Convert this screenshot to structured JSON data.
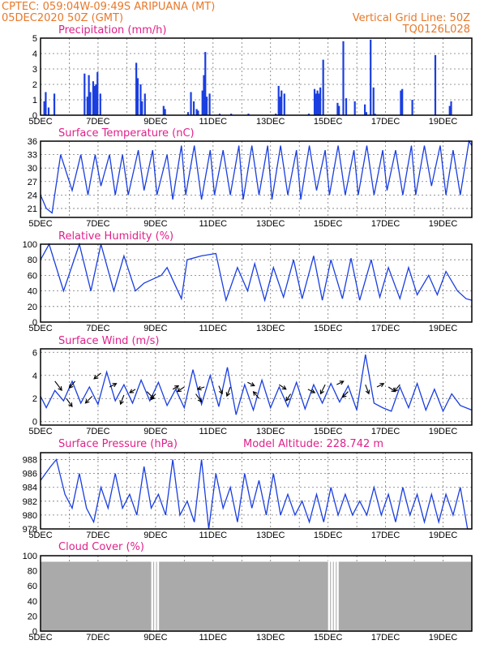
{
  "header": {
    "line1_left": "CPTEC:   059:04W-09:49S   ARIPUANA (MT)",
    "line2_left": "05DEC2020 50Z (GMT)",
    "line2_right": "Vertical Grid Line: 50Z",
    "line3_right": "TQ0126L028"
  },
  "colors": {
    "header": "#e8782a",
    "title": "#e0208a",
    "series": "#1a3ee0",
    "cloud": "#aaaaaa"
  },
  "chart_data": [
    {
      "id": "precip",
      "type": "bar",
      "title": "Precipitation (mm/h)",
      "x_ticks": [
        "5DEC",
        "7DEC",
        "9DEC",
        "11DEC",
        "13DEC",
        "15DEC",
        "17DEC",
        "19DEC"
      ],
      "ylim": [
        0,
        5
      ],
      "y_ticks": [
        0,
        1,
        2,
        3,
        4,
        5
      ],
      "bars": [
        [
          0.1,
          0.9
        ],
        [
          0.15,
          1.5
        ],
        [
          0.25,
          0.5
        ],
        [
          0.45,
          1.4
        ],
        [
          1.5,
          2.7
        ],
        [
          1.6,
          1.2
        ],
        [
          1.65,
          2.6
        ],
        [
          1.7,
          1.5
        ],
        [
          1.8,
          2.2
        ],
        [
          1.85,
          1.9
        ],
        [
          1.9,
          2.0
        ],
        [
          1.95,
          2.8
        ],
        [
          2.05,
          1.4
        ],
        [
          3.3,
          3.4
        ],
        [
          3.35,
          2.4
        ],
        [
          3.45,
          2.0
        ],
        [
          3.5,
          0.9
        ],
        [
          3.6,
          1.4
        ],
        [
          4.25,
          0.6
        ],
        [
          4.3,
          0.4
        ],
        [
          5.1,
          0.2
        ],
        [
          5.2,
          1.5
        ],
        [
          5.3,
          0.9
        ],
        [
          5.4,
          0.4
        ],
        [
          5.45,
          0.3
        ],
        [
          5.6,
          1.6
        ],
        [
          5.65,
          2.6
        ],
        [
          5.7,
          4.1
        ],
        [
          5.75,
          1.2
        ],
        [
          5.85,
          1.4
        ],
        [
          6.2,
          0.1
        ],
        [
          6.6,
          0.1
        ],
        [
          7.2,
          0.1
        ],
        [
          8.15,
          0.1
        ],
        [
          8.25,
          1.9
        ],
        [
          8.3,
          1.2
        ],
        [
          8.35,
          1.6
        ],
        [
          8.45,
          1.4
        ],
        [
          9.3,
          0.1
        ],
        [
          9.5,
          1.7
        ],
        [
          9.55,
          1.4
        ],
        [
          9.6,
          1.6
        ],
        [
          9.65,
          1.4
        ],
        [
          9.7,
          1.8
        ],
        [
          9.8,
          3.6
        ],
        [
          10.3,
          0.8
        ],
        [
          10.35,
          0.6
        ],
        [
          10.5,
          4.8
        ],
        [
          10.6,
          1.1
        ],
        [
          10.9,
          0.9
        ],
        [
          11.25,
          0.7
        ],
        [
          11.3,
          0.2
        ],
        [
          11.45,
          4.9
        ],
        [
          11.55,
          1.8
        ],
        [
          11.6,
          0.1
        ],
        [
          12.5,
          1.6
        ],
        [
          12.55,
          1.7
        ],
        [
          12.9,
          1.0
        ],
        [
          13.7,
          3.9
        ],
        [
          14.2,
          0.6
        ],
        [
          14.25,
          0.9
        ]
      ]
    },
    {
      "id": "temp",
      "type": "line",
      "title": "Surface Temperature (nC)",
      "x_ticks": [
        "5DEC",
        "7DEC",
        "9DEC",
        "11DEC",
        "13DEC",
        "15DEC",
        "17DEC",
        "19DEC"
      ],
      "ylim": [
        19,
        36
      ],
      "y_ticks": [
        21,
        24,
        27,
        30,
        33,
        36
      ],
      "x": [
        0,
        0.2,
        0.4,
        0.7,
        1.1,
        1.4,
        1.65,
        1.9,
        2.1,
        2.4,
        2.6,
        2.85,
        3.05,
        3.4,
        3.6,
        3.9,
        4.05,
        4.4,
        4.6,
        4.9,
        5.05,
        5.35,
        5.6,
        5.9,
        6.05,
        6.35,
        6.6,
        6.9,
        7.05,
        7.35,
        7.6,
        7.9,
        8.05,
        8.35,
        8.6,
        8.9,
        9.05,
        9.35,
        9.6,
        9.9,
        10.05,
        10.35,
        10.6,
        10.9,
        11.05,
        11.35,
        11.6,
        11.9,
        12.05,
        12.35,
        12.6,
        12.9,
        13.05,
        13.35,
        13.6,
        13.9,
        14.1,
        14.35,
        14.6,
        14.9,
        15.0
      ],
      "y": [
        24,
        21,
        20,
        33,
        25,
        33,
        24,
        33,
        26,
        33,
        24,
        33,
        24,
        34,
        25,
        34,
        24,
        33,
        23,
        35,
        24,
        35,
        23,
        34,
        24,
        34,
        24,
        35,
        23,
        35,
        24,
        35,
        23,
        35,
        24,
        34,
        23,
        35,
        25,
        34,
        24,
        35,
        24,
        34,
        24,
        35,
        24,
        34,
        25,
        34,
        24,
        35,
        24,
        35,
        26,
        35,
        24,
        34,
        24,
        36,
        35
      ]
    },
    {
      "id": "rh",
      "type": "line",
      "title": "Relative Humidity (%)",
      "x_ticks": [
        "5DEC",
        "7DEC",
        "9DEC",
        "11DEC",
        "13DEC",
        "15DEC",
        "17DEC",
        "19DEC"
      ],
      "ylim": [
        0,
        100
      ],
      "y_ticks": [
        0,
        20,
        40,
        60,
        80,
        100
      ],
      "x": [
        0,
        0.3,
        0.8,
        1.35,
        1.75,
        2.1,
        2.55,
        2.9,
        3.3,
        3.6,
        3.9,
        4.2,
        4.4,
        4.9,
        5.1,
        5.6,
        6.1,
        6.45,
        6.85,
        7.2,
        7.45,
        7.8,
        8.1,
        8.45,
        8.8,
        9.1,
        9.5,
        9.8,
        10.1,
        10.5,
        10.8,
        11.1,
        11.5,
        11.8,
        12.1,
        12.5,
        12.8,
        13.1,
        13.5,
        13.8,
        14.1,
        14.5,
        14.8,
        15.0
      ],
      "y": [
        80,
        100,
        40,
        100,
        40,
        100,
        40,
        85,
        40,
        50,
        55,
        60,
        70,
        30,
        80,
        85,
        88,
        28,
        70,
        40,
        75,
        28,
        70,
        32,
        80,
        30,
        85,
        28,
        80,
        30,
        82,
        28,
        80,
        32,
        70,
        30,
        70,
        35,
        60,
        35,
        65,
        40,
        30,
        28
      ]
    },
    {
      "id": "wind",
      "type": "line",
      "title": "Surface Wind (m/s)",
      "x_ticks": [
        "5DEC",
        "7DEC",
        "9DEC",
        "11DEC",
        "13DEC",
        "15DEC",
        "17DEC",
        "19DEC"
      ],
      "ylim": [
        -0.3,
        6.3
      ],
      "y_ticks": [
        0,
        2,
        4,
        6
      ],
      "x": [
        0,
        0.2,
        0.5,
        0.8,
        1.1,
        1.4,
        1.7,
        2.0,
        2.3,
        2.6,
        2.9,
        3.2,
        3.5,
        3.8,
        4.1,
        4.4,
        4.7,
        5.0,
        5.3,
        5.6,
        5.9,
        6.2,
        6.5,
        6.8,
        7.1,
        7.4,
        7.7,
        8.0,
        8.3,
        8.6,
        8.9,
        9.2,
        9.5,
        9.8,
        10.1,
        10.4,
        10.7,
        11.0,
        11.3,
        11.6,
        11.9,
        12.2,
        12.5,
        12.8,
        13.1,
        13.4,
        13.7,
        14.0,
        14.3,
        14.6,
        15.0
      ],
      "y": [
        2.2,
        1.2,
        2.7,
        1.8,
        3.5,
        1.6,
        3.0,
        1.5,
        4.3,
        1.8,
        3.2,
        1.6,
        3.6,
        1.8,
        3.4,
        1.4,
        2.8,
        1.2,
        4.5,
        1.5,
        4.0,
        1.3,
        4.7,
        0.6,
        3.2,
        1.0,
        3.6,
        1.2,
        3.0,
        1.3,
        3.4,
        1.1,
        3.2,
        1.6,
        3.3,
        1.7,
        3.1,
        1.0,
        5.8,
        1.6,
        1.2,
        0.9,
        3.0,
        1.2,
        3.3,
        1.0,
        2.8,
        0.9,
        2.4,
        1.4,
        1.0
      ],
      "barbs": [
        [
          0.5,
          3.5,
          0.6,
          -0.8
        ],
        [
          0.9,
          2.0,
          0.5,
          -0.7
        ],
        [
          1.2,
          3.5,
          -0.5,
          -0.6
        ],
        [
          1.8,
          2.2,
          -0.6,
          -0.6
        ],
        [
          2.1,
          4.2,
          -0.6,
          -0.5
        ],
        [
          2.4,
          3.0,
          0.6,
          0.3
        ],
        [
          2.9,
          2.3,
          -0.3,
          -0.8
        ],
        [
          3.3,
          2.8,
          -0.5,
          -0.3
        ],
        [
          3.7,
          2.6,
          0.6,
          -0.6
        ],
        [
          4.0,
          2.4,
          -0.4,
          -0.5
        ],
        [
          4.6,
          2.8,
          0.5,
          0.3
        ],
        [
          5.0,
          3.0,
          -0.6,
          -0.4
        ],
        [
          5.4,
          2.4,
          0.5,
          -0.7
        ],
        [
          5.7,
          3.0,
          -0.6,
          -0.2
        ],
        [
          6.2,
          3.1,
          0.3,
          -0.7
        ],
        [
          6.6,
          3.0,
          -0.3,
          -0.8
        ],
        [
          7.2,
          3.4,
          0.6,
          -0.3
        ],
        [
          7.6,
          2.0,
          -0.5,
          0.6
        ],
        [
          8.3,
          3.2,
          0.6,
          -0.4
        ],
        [
          8.7,
          2.4,
          -0.4,
          -0.6
        ],
        [
          9.3,
          2.8,
          0.6,
          -0.3
        ],
        [
          9.9,
          3.2,
          -0.4,
          -0.8
        ],
        [
          10.3,
          3.2,
          0.6,
          0.3
        ],
        [
          10.7,
          2.6,
          -0.5,
          -0.5
        ],
        [
          11.3,
          3.2,
          0.3,
          -0.8
        ],
        [
          11.7,
          3.0,
          0.6,
          0.3
        ],
        [
          12.1,
          3.0,
          0.6,
          -0.4
        ],
        [
          12.5,
          3.2,
          -0.5,
          -0.6
        ]
      ]
    },
    {
      "id": "press",
      "type": "line",
      "title": "Surface Pressure (hPa)",
      "annotation": "Model Altitude: 228.742 m",
      "x_ticks": [
        "5DEC",
        "7DEC",
        "9DEC",
        "11DEC",
        "13DEC",
        "15DEC",
        "17DEC",
        "19DEC"
      ],
      "ylim": [
        978,
        989
      ],
      "y_ticks": [
        978,
        980,
        982,
        984,
        986,
        988
      ],
      "x": [
        0,
        0.35,
        0.55,
        0.85,
        1.1,
        1.35,
        1.6,
        1.85,
        2.1,
        2.35,
        2.6,
        2.85,
        3.1,
        3.35,
        3.6,
        3.85,
        4.1,
        4.35,
        4.6,
        4.85,
        5.1,
        5.35,
        5.6,
        5.85,
        6.1,
        6.35,
        6.6,
        6.85,
        7.1,
        7.35,
        7.6,
        7.85,
        8.1,
        8.35,
        8.6,
        8.85,
        9.1,
        9.35,
        9.6,
        9.85,
        10.1,
        10.35,
        10.6,
        10.85,
        11.1,
        11.35,
        11.6,
        11.85,
        12.1,
        12.35,
        12.6,
        12.85,
        13.1,
        13.35,
        13.6,
        13.85,
        14.1,
        14.35,
        14.6,
        14.85,
        15.0
      ],
      "y": [
        985,
        987,
        988,
        983,
        981,
        986,
        981,
        979,
        984,
        981,
        986,
        981,
        983,
        980,
        987,
        981,
        983,
        980,
        988,
        980,
        982,
        979,
        988,
        978,
        986,
        981,
        984,
        979,
        986,
        981,
        985,
        980,
        986,
        980,
        983,
        980,
        982,
        979,
        983,
        979,
        984,
        980,
        983,
        980,
        982,
        980,
        984,
        980,
        983,
        979,
        984,
        980,
        983,
        979,
        983,
        979,
        983,
        980,
        984,
        978,
        978
      ]
    },
    {
      "id": "cloud",
      "type": "bar",
      "title": "Cloud Cover (%)",
      "x_ticks": [
        "5DEC",
        "7DEC",
        "9DEC",
        "11DEC",
        "13DEC",
        "15DEC",
        "17DEC",
        "19DEC"
      ],
      "ylim": [
        0,
        100
      ],
      "y_ticks": [
        0,
        20,
        40,
        60,
        80,
        100
      ],
      "bars": [
        [
          3.85,
          0
        ],
        [
          3.95,
          0
        ],
        [
          4.05,
          0
        ],
        [
          10.0,
          0
        ],
        [
          10.1,
          0
        ],
        [
          10.2,
          0
        ],
        [
          10.3,
          0
        ]
      ],
      "fill_level": 92
    }
  ]
}
